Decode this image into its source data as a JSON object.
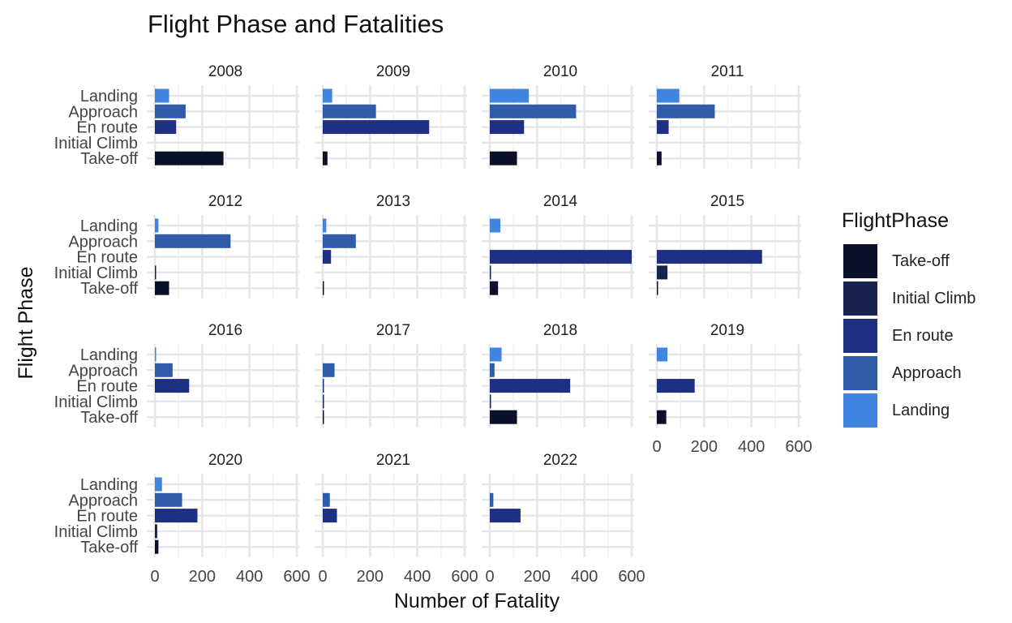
{
  "chart_data": {
    "type": "bar",
    "orientation": "horizontal",
    "title": "Flight Phase and Fatalities",
    "xlabel": "Number of Fatality",
    "ylabel": "Flight Phase",
    "xlim": [
      0,
      620
    ],
    "x_ticks": [
      0,
      200,
      400,
      600
    ],
    "grid": true,
    "categories": [
      "Take-off",
      "Initial Climb",
      "En route",
      "Approach",
      "Landing"
    ],
    "legend": {
      "title": "FlightPhase",
      "position": "right",
      "entries": [
        "Take-off",
        "Initial Climb",
        "En route",
        "Approach",
        "Landing"
      ]
    },
    "colors": {
      "Take-off": "#0a1128",
      "Initial Climb": "#1a2350",
      "En route": "#1f2f82",
      "Approach": "#2f5ba8",
      "Landing": "#4185e0"
    },
    "panels": [
      {
        "year": "2008",
        "values": [
          290,
          0,
          90,
          130,
          60
        ]
      },
      {
        "year": "2009",
        "values": [
          20,
          0,
          450,
          225,
          40
        ]
      },
      {
        "year": "2010",
        "values": [
          115,
          0,
          145,
          365,
          165
        ]
      },
      {
        "year": "2011",
        "values": [
          20,
          0,
          50,
          245,
          95
        ]
      },
      {
        "year": "2012",
        "values": [
          60,
          5,
          0,
          320,
          15
        ]
      },
      {
        "year": "2013",
        "values": [
          5,
          0,
          35,
          140,
          15
        ]
      },
      {
        "year": "2014",
        "values": [
          35,
          5,
          600,
          0,
          45
        ]
      },
      {
        "year": "2015",
        "values": [
          5,
          45,
          445,
          0,
          0
        ]
      },
      {
        "year": "2016",
        "values": [
          0,
          0,
          145,
          75,
          5
        ]
      },
      {
        "year": "2017",
        "values": [
          5,
          5,
          5,
          50,
          0
        ]
      },
      {
        "year": "2018",
        "values": [
          115,
          5,
          340,
          20,
          50
        ]
      },
      {
        "year": "2019",
        "values": [
          40,
          0,
          160,
          0,
          45
        ]
      },
      {
        "year": "2020",
        "values": [
          15,
          10,
          180,
          115,
          30
        ]
      },
      {
        "year": "2021",
        "values": [
          0,
          0,
          60,
          30,
          0
        ]
      },
      {
        "year": "2022",
        "values": [
          0,
          0,
          130,
          15,
          0
        ]
      }
    ]
  }
}
